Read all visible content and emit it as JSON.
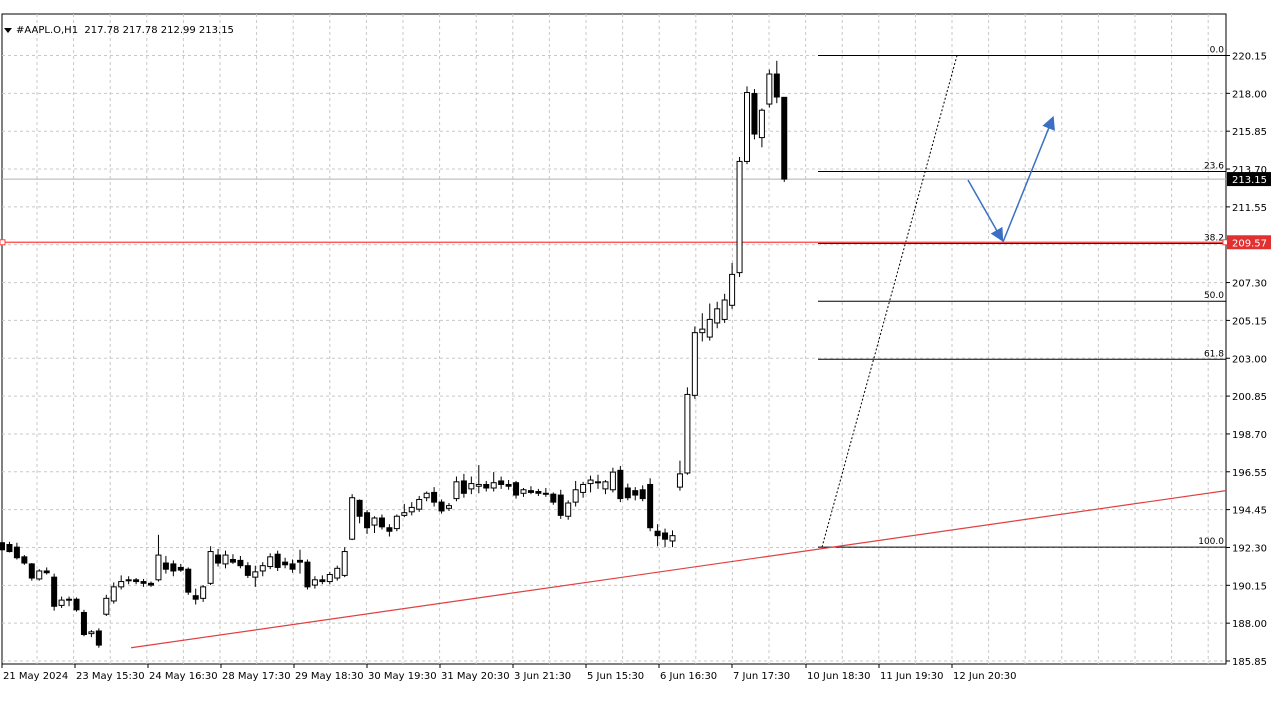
{
  "header": {
    "symbol": "#AAPL.O,H1",
    "ohlc": "217.78 217.78 212.99 213.15"
  },
  "price_tags": {
    "current": "213.15",
    "level": "209.57"
  },
  "colors": {
    "bull_body": "#ffffff",
    "bear_body": "#000000",
    "grid": "#c8c8c8",
    "trendline": "#e04040",
    "horizontal_level": "#ff4040",
    "arrows": "#3a6fc4",
    "fib_lines": "#000000",
    "current_price_tag": "#000000",
    "level_tag": "#e03030"
  },
  "chart_data": {
    "type": "candlestick",
    "title": "",
    "y_ticks": [
      "220.15",
      "218.00",
      "215.85",
      "213.70",
      "211.55",
      "209.40",
      "207.30",
      "205.15",
      "203.00",
      "200.85",
      "198.70",
      "196.55",
      "194.45",
      "192.30",
      "190.15",
      "188.00",
      "185.85"
    ],
    "ylim": [
      185.85,
      221.3
    ],
    "x_tick_labels": [
      "21 May 2024",
      "23 May 15:30",
      "24 May 16:30",
      "28 May 17:30",
      "29 May 18:30",
      "30 May 19:30",
      "31 May 20:30",
      "3 Jun 21:30",
      "5 Jun 15:30",
      "6 Jun 16:30",
      "7 Jun 17:30",
      "10 Jun 18:30",
      "11 Jun 19:30",
      "12 Jun 20:30"
    ],
    "grid": true,
    "candles": [
      {
        "o": 192.55,
        "h": 192.75,
        "l": 192.05,
        "c": 192.15
      },
      {
        "o": 192.45,
        "h": 192.6,
        "l": 192.0,
        "c": 192.05
      },
      {
        "o": 192.3,
        "h": 192.55,
        "l": 191.6,
        "c": 191.7
      },
      {
        "o": 191.75,
        "h": 191.85,
        "l": 191.3,
        "c": 191.4
      },
      {
        "o": 191.35,
        "h": 191.4,
        "l": 190.4,
        "c": 190.55
      },
      {
        "o": 190.5,
        "h": 191.05,
        "l": 190.4,
        "c": 190.95
      },
      {
        "o": 190.95,
        "h": 191.15,
        "l": 190.75,
        "c": 190.85
      },
      {
        "o": 190.6,
        "h": 190.8,
        "l": 188.7,
        "c": 188.95
      },
      {
        "o": 189.0,
        "h": 189.5,
        "l": 188.85,
        "c": 189.3
      },
      {
        "o": 189.3,
        "h": 189.5,
        "l": 188.95,
        "c": 189.35
      },
      {
        "o": 189.35,
        "h": 189.45,
        "l": 188.65,
        "c": 188.75
      },
      {
        "o": 188.6,
        "h": 188.75,
        "l": 187.25,
        "c": 187.35
      },
      {
        "o": 187.4,
        "h": 187.6,
        "l": 187.2,
        "c": 187.5
      },
      {
        "o": 187.55,
        "h": 187.7,
        "l": 186.6,
        "c": 186.75
      },
      {
        "o": 188.5,
        "h": 189.6,
        "l": 188.4,
        "c": 189.4
      },
      {
        "o": 189.25,
        "h": 190.3,
        "l": 189.1,
        "c": 190.05
      },
      {
        "o": 190.05,
        "h": 190.7,
        "l": 189.9,
        "c": 190.35
      },
      {
        "o": 190.4,
        "h": 190.65,
        "l": 190.2,
        "c": 190.45
      },
      {
        "o": 190.45,
        "h": 190.55,
        "l": 190.2,
        "c": 190.35
      },
      {
        "o": 190.35,
        "h": 190.5,
        "l": 190.05,
        "c": 190.25
      },
      {
        "o": 190.25,
        "h": 190.35,
        "l": 190.05,
        "c": 190.15
      },
      {
        "o": 190.45,
        "h": 193.0,
        "l": 190.35,
        "c": 191.85
      },
      {
        "o": 191.4,
        "h": 191.8,
        "l": 190.8,
        "c": 191.05
      },
      {
        "o": 191.35,
        "h": 191.55,
        "l": 190.65,
        "c": 190.95
      },
      {
        "o": 191.15,
        "h": 191.35,
        "l": 190.9,
        "c": 191.0
      },
      {
        "o": 191.05,
        "h": 191.15,
        "l": 189.6,
        "c": 189.75
      },
      {
        "o": 189.55,
        "h": 189.95,
        "l": 189.05,
        "c": 189.35
      },
      {
        "o": 189.4,
        "h": 190.15,
        "l": 189.2,
        "c": 190.05
      },
      {
        "o": 190.25,
        "h": 192.35,
        "l": 190.15,
        "c": 192.05
      },
      {
        "o": 191.85,
        "h": 192.2,
        "l": 191.2,
        "c": 191.4
      },
      {
        "o": 191.35,
        "h": 192.1,
        "l": 191.1,
        "c": 191.85
      },
      {
        "o": 191.6,
        "h": 191.9,
        "l": 191.35,
        "c": 191.45
      },
      {
        "o": 191.55,
        "h": 191.8,
        "l": 191.1,
        "c": 191.25
      },
      {
        "o": 191.25,
        "h": 191.45,
        "l": 190.55,
        "c": 190.7
      },
      {
        "o": 190.6,
        "h": 191.25,
        "l": 190.05,
        "c": 190.9
      },
      {
        "o": 190.95,
        "h": 191.45,
        "l": 190.65,
        "c": 191.25
      },
      {
        "o": 191.2,
        "h": 191.95,
        "l": 191.05,
        "c": 191.75
      },
      {
        "o": 191.9,
        "h": 192.1,
        "l": 190.95,
        "c": 191.15
      },
      {
        "o": 191.45,
        "h": 191.7,
        "l": 191.1,
        "c": 191.3
      },
      {
        "o": 191.35,
        "h": 191.6,
        "l": 190.85,
        "c": 191.05
      },
      {
        "o": 191.55,
        "h": 192.15,
        "l": 190.8,
        "c": 191.45
      },
      {
        "o": 191.45,
        "h": 191.6,
        "l": 189.9,
        "c": 190.05
      },
      {
        "o": 190.15,
        "h": 190.65,
        "l": 189.95,
        "c": 190.45
      },
      {
        "o": 190.45,
        "h": 190.7,
        "l": 190.2,
        "c": 190.35
      },
      {
        "o": 190.35,
        "h": 190.9,
        "l": 190.2,
        "c": 190.75
      },
      {
        "o": 190.55,
        "h": 191.25,
        "l": 190.4,
        "c": 191.1
      },
      {
        "o": 190.7,
        "h": 192.3,
        "l": 190.6,
        "c": 192.05
      },
      {
        "o": 192.75,
        "h": 195.3,
        "l": 192.7,
        "c": 195.1
      },
      {
        "o": 194.95,
        "h": 195.0,
        "l": 193.65,
        "c": 194.05
      },
      {
        "o": 194.25,
        "h": 194.4,
        "l": 193.05,
        "c": 193.4
      },
      {
        "o": 193.55,
        "h": 194.05,
        "l": 193.1,
        "c": 193.95
      },
      {
        "o": 193.95,
        "h": 194.15,
        "l": 193.3,
        "c": 193.45
      },
      {
        "o": 193.4,
        "h": 193.6,
        "l": 192.9,
        "c": 193.2
      },
      {
        "o": 193.35,
        "h": 194.15,
        "l": 193.2,
        "c": 194.05
      },
      {
        "o": 194.1,
        "h": 194.75,
        "l": 194.0,
        "c": 194.25
      },
      {
        "o": 194.3,
        "h": 194.85,
        "l": 194.1,
        "c": 194.55
      },
      {
        "o": 194.45,
        "h": 195.2,
        "l": 194.3,
        "c": 195.0
      },
      {
        "o": 195.1,
        "h": 195.45,
        "l": 194.9,
        "c": 195.35
      },
      {
        "o": 195.4,
        "h": 195.7,
        "l": 194.6,
        "c": 194.85
      },
      {
        "o": 194.85,
        "h": 195.0,
        "l": 194.2,
        "c": 194.35
      },
      {
        "o": 194.5,
        "h": 194.8,
        "l": 194.35,
        "c": 194.65
      },
      {
        "o": 195.05,
        "h": 196.3,
        "l": 194.9,
        "c": 196.0
      },
      {
        "o": 196.05,
        "h": 196.45,
        "l": 195.1,
        "c": 195.35
      },
      {
        "o": 195.6,
        "h": 196.3,
        "l": 195.3,
        "c": 195.9
      },
      {
        "o": 195.75,
        "h": 196.95,
        "l": 195.35,
        "c": 195.85
      },
      {
        "o": 195.85,
        "h": 196.05,
        "l": 195.45,
        "c": 195.65
      },
      {
        "o": 195.65,
        "h": 196.55,
        "l": 195.45,
        "c": 195.95
      },
      {
        "o": 196.05,
        "h": 196.3,
        "l": 195.6,
        "c": 195.85
      },
      {
        "o": 195.85,
        "h": 196.1,
        "l": 195.55,
        "c": 195.75
      },
      {
        "o": 195.95,
        "h": 196.05,
        "l": 195.05,
        "c": 195.25
      },
      {
        "o": 195.35,
        "h": 195.65,
        "l": 195.15,
        "c": 195.55
      },
      {
        "o": 195.5,
        "h": 195.75,
        "l": 195.3,
        "c": 195.4
      },
      {
        "o": 195.45,
        "h": 195.6,
        "l": 195.2,
        "c": 195.35
      },
      {
        "o": 195.35,
        "h": 195.65,
        "l": 195.15,
        "c": 195.3
      },
      {
        "o": 195.3,
        "h": 195.4,
        "l": 194.7,
        "c": 194.85
      },
      {
        "o": 195.25,
        "h": 195.55,
        "l": 193.9,
        "c": 194.1
      },
      {
        "o": 194.05,
        "h": 194.95,
        "l": 193.85,
        "c": 194.8
      },
      {
        "o": 194.85,
        "h": 196.05,
        "l": 194.6,
        "c": 195.55
      },
      {
        "o": 195.4,
        "h": 196.0,
        "l": 195.1,
        "c": 195.85
      },
      {
        "o": 195.9,
        "h": 196.35,
        "l": 195.4,
        "c": 196.1
      },
      {
        "o": 196.0,
        "h": 196.4,
        "l": 195.6,
        "c": 195.95
      },
      {
        "o": 195.6,
        "h": 196.1,
        "l": 195.3,
        "c": 196.0
      },
      {
        "o": 195.55,
        "h": 196.8,
        "l": 195.4,
        "c": 196.55
      },
      {
        "o": 196.65,
        "h": 196.9,
        "l": 194.85,
        "c": 195.05
      },
      {
        "o": 195.65,
        "h": 195.9,
        "l": 194.95,
        "c": 195.1
      },
      {
        "o": 195.5,
        "h": 195.7,
        "l": 194.95,
        "c": 195.25
      },
      {
        "o": 195.55,
        "h": 195.8,
        "l": 194.9,
        "c": 195.05
      },
      {
        "o": 195.85,
        "h": 196.2,
        "l": 193.2,
        "c": 193.4
      },
      {
        "o": 193.2,
        "h": 193.6,
        "l": 192.35,
        "c": 192.95
      },
      {
        "o": 193.1,
        "h": 193.35,
        "l": 192.3,
        "c": 192.75
      },
      {
        "o": 192.65,
        "h": 193.25,
        "l": 192.3,
        "c": 192.95
      },
      {
        "o": 195.7,
        "h": 197.2,
        "l": 195.5,
        "c": 196.45
      },
      {
        "o": 196.5,
        "h": 201.35,
        "l": 196.4,
        "c": 200.95
      },
      {
        "o": 200.9,
        "h": 204.8,
        "l": 200.7,
        "c": 204.45
      },
      {
        "o": 204.45,
        "h": 205.55,
        "l": 203.95,
        "c": 204.65
      },
      {
        "o": 204.2,
        "h": 206.1,
        "l": 204.0,
        "c": 205.2
      },
      {
        "o": 205.0,
        "h": 206.2,
        "l": 204.7,
        "c": 205.8
      },
      {
        "o": 205.2,
        "h": 206.65,
        "l": 205.0,
        "c": 206.3
      },
      {
        "o": 206.0,
        "h": 208.4,
        "l": 205.8,
        "c": 207.75
      },
      {
        "o": 207.85,
        "h": 214.4,
        "l": 207.6,
        "c": 214.15
      },
      {
        "o": 214.15,
        "h": 218.4,
        "l": 214.0,
        "c": 218.05
      },
      {
        "o": 218.0,
        "h": 218.25,
        "l": 215.4,
        "c": 215.7
      },
      {
        "o": 215.5,
        "h": 217.15,
        "l": 214.95,
        "c": 217.05
      },
      {
        "o": 217.4,
        "h": 219.35,
        "l": 217.2,
        "c": 219.1
      },
      {
        "o": 219.1,
        "h": 219.85,
        "l": 217.45,
        "c": 217.8
      },
      {
        "o": 217.78,
        "h": 217.78,
        "l": 212.99,
        "c": 213.15
      }
    ],
    "fibonacci": {
      "start_price": 192.3,
      "end_price": 220.15,
      "levels": [
        {
          "label": "0.0",
          "price": 220.15
        },
        {
          "label": "23.6",
          "price": 213.58
        },
        {
          "label": "38.2",
          "price": 209.51
        },
        {
          "label": "50.0",
          "price": 206.23
        },
        {
          "label": "61.8",
          "price": 202.94
        },
        {
          "label": "100.0",
          "price": 192.3
        }
      ]
    },
    "horizontal_line_price": 209.57,
    "current_price": 213.15,
    "trendline": {
      "from_price": 186.6,
      "to_price": 195.5
    }
  }
}
